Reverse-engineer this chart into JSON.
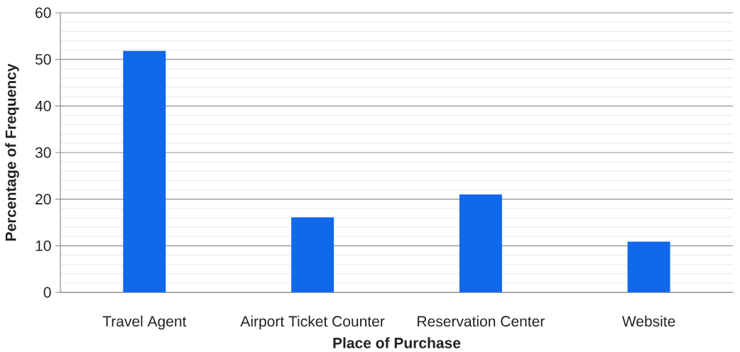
{
  "chart_data": {
    "type": "bar",
    "xlabel": "Place of Purchase",
    "ylabel": "Percentage of Frequency",
    "categories": [
      "Travel Agent",
      "Airport Ticket Counter",
      "Reservation Center",
      "Website"
    ],
    "values": [
      51.8,
      16.1,
      21.0,
      10.9
    ],
    "color": "#1268ea",
    "ylim": [
      0,
      60
    ],
    "yticks": [
      0,
      10,
      20,
      30,
      40,
      50,
      60
    ],
    "grid": "y"
  }
}
